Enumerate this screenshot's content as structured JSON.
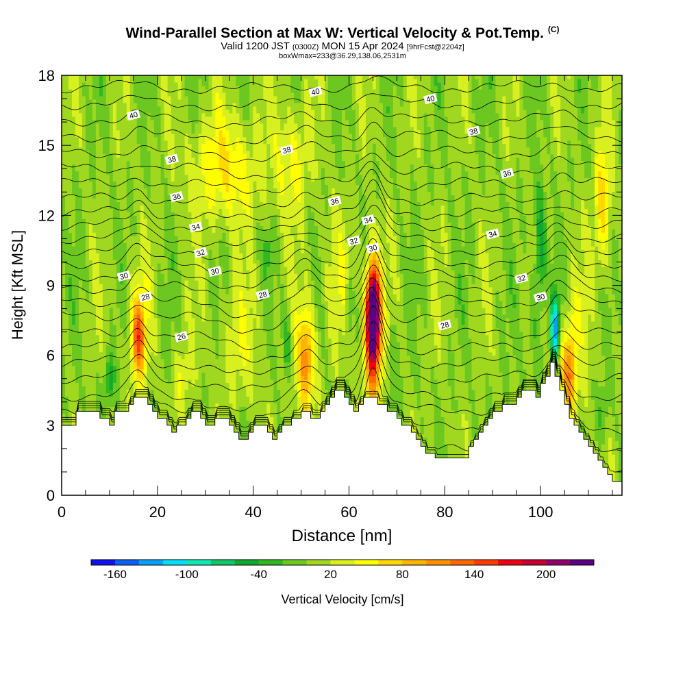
{
  "header": {
    "title": "Wind-Parallel Section at Max W: Vertical Velocity & Pot.Temp.",
    "copyright": "(C)",
    "valid_prefix": "Valid 1200 JST",
    "valid_z": "(0300Z)",
    "valid_date": "MON 15 Apr 2024",
    "forecast": "[9hrFcst@2204z]",
    "box_info": "boxWmax=233@36.29,138.06,2531m"
  },
  "chart_data": {
    "type": "heatmap",
    "xlabel": "Distance [nm]",
    "ylabel": "Height [Kft MSL]",
    "xlim": [
      0,
      117
    ],
    "ylim": [
      0,
      18
    ],
    "x_ticks": [
      "0",
      "20",
      "40",
      "60",
      "80",
      "100"
    ],
    "y_ticks": [
      "0",
      "3",
      "6",
      "9",
      "12",
      "15",
      "18"
    ],
    "colorbar": {
      "label": "Vertical Velocity [cm/s]",
      "tick_labels": [
        "-160",
        "-100",
        "-40",
        "20",
        "80",
        "140",
        "200"
      ],
      "levels": [
        -180,
        -160,
        -140,
        -120,
        -100,
        -80,
        -60,
        -40,
        -20,
        0,
        20,
        40,
        60,
        80,
        100,
        120,
        140,
        160,
        180,
        200,
        220,
        240
      ],
      "colors": [
        "#1010f0",
        "#0a5ff5",
        "#0aa0f8",
        "#00e0f8",
        "#10e8b0",
        "#10c868",
        "#10a830",
        "#30b820",
        "#6cc820",
        "#a0d820",
        "#d8f020",
        "#ffff00",
        "#ffd800",
        "#ffb400",
        "#ff9000",
        "#ff6800",
        "#ff3c00",
        "#f00010",
        "#c80030",
        "#90006a",
        "#5a0080"
      ]
    },
    "terrain_top_kft": [
      [
        0,
        3.0
      ],
      [
        3,
        3.0
      ],
      [
        3,
        3.6
      ],
      [
        8,
        3.6
      ],
      [
        8,
        3.3
      ],
      [
        10,
        3.3
      ],
      [
        10,
        3.0
      ],
      [
        11,
        3.0
      ],
      [
        11,
        3.6
      ],
      [
        14,
        3.6
      ],
      [
        14,
        3.9
      ],
      [
        15,
        3.9
      ],
      [
        15,
        4.2
      ],
      [
        18,
        4.2
      ],
      [
        18,
        3.9
      ],
      [
        19,
        3.9
      ],
      [
        19,
        3.6
      ],
      [
        20,
        3.6
      ],
      [
        20,
        3.3
      ],
      [
        22,
        3.3
      ],
      [
        22,
        3.0
      ],
      [
        23,
        3.0
      ],
      [
        23,
        2.7
      ],
      [
        24,
        2.7
      ],
      [
        24,
        3.0
      ],
      [
        26,
        3.0
      ],
      [
        26,
        3.3
      ],
      [
        27,
        3.3
      ],
      [
        27,
        3.6
      ],
      [
        29,
        3.6
      ],
      [
        29,
        3.3
      ],
      [
        30,
        3.3
      ],
      [
        30,
        3.0
      ],
      [
        32,
        3.0
      ],
      [
        32,
        3.3
      ],
      [
        35,
        3.3
      ],
      [
        35,
        3.0
      ],
      [
        36,
        3.0
      ],
      [
        36,
        2.7
      ],
      [
        37,
        2.7
      ],
      [
        37,
        2.4
      ],
      [
        39,
        2.4
      ],
      [
        39,
        2.7
      ],
      [
        40,
        2.7
      ],
      [
        40,
        3.0
      ],
      [
        43,
        3.0
      ],
      [
        43,
        2.7
      ],
      [
        44,
        2.7
      ],
      [
        44,
        2.4
      ],
      [
        45,
        2.4
      ],
      [
        45,
        2.7
      ],
      [
        46,
        2.7
      ],
      [
        46,
        3.0
      ],
      [
        48,
        3.0
      ],
      [
        48,
        3.3
      ],
      [
        50,
        3.3
      ],
      [
        50,
        3.6
      ],
      [
        52,
        3.6
      ],
      [
        52,
        3.3
      ],
      [
        54,
        3.3
      ],
      [
        54,
        3.6
      ],
      [
        55,
        3.6
      ],
      [
        55,
        3.9
      ],
      [
        56,
        3.9
      ],
      [
        56,
        4.2
      ],
      [
        57,
        4.2
      ],
      [
        57,
        4.5
      ],
      [
        59,
        4.5
      ],
      [
        59,
        4.2
      ],
      [
        60,
        4.2
      ],
      [
        60,
        3.9
      ],
      [
        61,
        3.9
      ],
      [
        61,
        3.6
      ],
      [
        62,
        3.6
      ],
      [
        62,
        3.9
      ],
      [
        63,
        3.9
      ],
      [
        63,
        4.2
      ],
      [
        66,
        4.2
      ],
      [
        66,
        3.9
      ],
      [
        68,
        3.9
      ],
      [
        68,
        3.6
      ],
      [
        70,
        3.6
      ],
      [
        70,
        3.3
      ],
      [
        71,
        3.3
      ],
      [
        71,
        3.0
      ],
      [
        73,
        3.0
      ],
      [
        73,
        2.7
      ],
      [
        74,
        2.7
      ],
      [
        74,
        2.4
      ],
      [
        75,
        2.4
      ],
      [
        75,
        2.1
      ],
      [
        76,
        2.1
      ],
      [
        76,
        1.8
      ],
      [
        78,
        1.8
      ],
      [
        78,
        1.6
      ],
      [
        85,
        1.6
      ],
      [
        85,
        2.1
      ],
      [
        86,
        2.1
      ],
      [
        86,
        2.4
      ],
      [
        87,
        2.4
      ],
      [
        87,
        2.7
      ],
      [
        88,
        2.7
      ],
      [
        88,
        3.0
      ],
      [
        89,
        3.0
      ],
      [
        89,
        3.3
      ],
      [
        90,
        3.3
      ],
      [
        90,
        3.6
      ],
      [
        92,
        3.6
      ],
      [
        92,
        3.9
      ],
      [
        95,
        3.9
      ],
      [
        95,
        4.2
      ],
      [
        96,
        4.2
      ],
      [
        96,
        4.5
      ],
      [
        99,
        4.5
      ],
      [
        99,
        4.2
      ],
      [
        100,
        4.2
      ],
      [
        100,
        4.8
      ],
      [
        101,
        4.8
      ],
      [
        101,
        5.1
      ],
      [
        102,
        5.1
      ],
      [
        102,
        5.7
      ],
      [
        103,
        5.7
      ],
      [
        103,
        5.1
      ],
      [
        104,
        5.1
      ],
      [
        104,
        4.5
      ],
      [
        105,
        4.5
      ],
      [
        105,
        3.9
      ],
      [
        106,
        3.9
      ],
      [
        106,
        3.3
      ],
      [
        107,
        3.3
      ],
      [
        107,
        3.0
      ],
      [
        108,
        3.0
      ],
      [
        108,
        2.7
      ],
      [
        109,
        2.7
      ],
      [
        109,
        2.4
      ],
      [
        110,
        2.4
      ],
      [
        110,
        2.1
      ],
      [
        111,
        2.1
      ],
      [
        111,
        1.8
      ],
      [
        112,
        1.8
      ],
      [
        112,
        1.5
      ],
      [
        113,
        1.5
      ],
      [
        113,
        1.2
      ],
      [
        114,
        1.2
      ],
      [
        114,
        0.9
      ],
      [
        115,
        0.9
      ],
      [
        115,
        0.6
      ],
      [
        117,
        0.6
      ]
    ],
    "background_w_cm_s": 5,
    "w_features": [
      {
        "x": 65,
        "y": 7.8,
        "sx": 1.3,
        "sy": 1.9,
        "w": 240
      },
      {
        "x": 65,
        "y": 6.6,
        "sx": 1.9,
        "sy": 3.4,
        "w": 120
      },
      {
        "x": 16,
        "y": 6.8,
        "sx": 1.3,
        "sy": 1.5,
        "w": 100
      },
      {
        "x": 16,
        "y": 6.8,
        "sx": 2.3,
        "sy": 2.9,
        "w": 40
      },
      {
        "x": 51,
        "y": 5.8,
        "sx": 1.6,
        "sy": 2.0,
        "w": 80
      },
      {
        "x": 51,
        "y": 5.8,
        "sx": 2.4,
        "sy": 3.0,
        "w": 30
      },
      {
        "x": 106,
        "y": 5.2,
        "sx": 2.0,
        "sy": 1.7,
        "w": 85
      },
      {
        "x": 107,
        "y": 6.2,
        "sx": 2.8,
        "sy": 3.0,
        "w": 35
      },
      {
        "x": 113,
        "y": 12.5,
        "sx": 1.8,
        "sy": 3.0,
        "w": 65
      },
      {
        "x": 34,
        "y": 14.0,
        "sx": 7.0,
        "sy": 2.4,
        "w": 55
      },
      {
        "x": 48,
        "y": 14.4,
        "sx": 3.5,
        "sy": 2.5,
        "w": 45
      },
      {
        "x": 37,
        "y": 6.5,
        "sx": 5.0,
        "sy": 2.5,
        "w": 25
      },
      {
        "x": 25,
        "y": 5.0,
        "sx": 2.0,
        "sy": 1.5,
        "w": 35
      },
      {
        "x": 58,
        "y": 9.5,
        "sx": 4.0,
        "sy": 3.0,
        "w": 20
      },
      {
        "x": 10,
        "y": 5.0,
        "sx": 0.9,
        "sy": 1.0,
        "w": -65
      },
      {
        "x": 47,
        "y": 6.5,
        "sx": 0.9,
        "sy": 1.4,
        "w": -50
      },
      {
        "x": 60,
        "y": 8.0,
        "sx": 0.7,
        "sy": 1.5,
        "w": -45
      },
      {
        "x": 103,
        "y": 7.2,
        "sx": 0.9,
        "sy": 1.4,
        "w": -130
      },
      {
        "x": 100,
        "y": 11.0,
        "sx": 1.1,
        "sy": 2.4,
        "w": -60
      },
      {
        "x": 99,
        "y": 7.5,
        "sx": 1.5,
        "sy": 3.0,
        "w": -30
      },
      {
        "x": 69,
        "y": 5.5,
        "sx": 1.2,
        "sy": 2.2,
        "w": -25
      },
      {
        "x": 108,
        "y": 5.5,
        "sx": 1.0,
        "sy": 1.5,
        "w": -40
      },
      {
        "x": 113,
        "y": 3.5,
        "sx": 1.2,
        "sy": 1.2,
        "w": -35
      },
      {
        "x": 43,
        "y": 10.5,
        "sx": 1.0,
        "sy": 0.8,
        "w": -30
      }
    ],
    "theta_labels": [
      {
        "text": "40",
        "x": 53,
        "y": 17.3
      },
      {
        "text": "40",
        "x": 77,
        "y": 17.0
      },
      {
        "text": "40",
        "x": 15,
        "y": 16.3
      },
      {
        "text": "38",
        "x": 86,
        "y": 15.6
      },
      {
        "text": "38",
        "x": 47,
        "y": 14.8
      },
      {
        "text": "38",
        "x": 23,
        "y": 14.4
      },
      {
        "text": "36",
        "x": 93,
        "y": 13.8
      },
      {
        "text": "36",
        "x": 24,
        "y": 12.8
      },
      {
        "text": "36",
        "x": 57,
        "y": 12.6
      },
      {
        "text": "34",
        "x": 64,
        "y": 11.8
      },
      {
        "text": "34",
        "x": 28,
        "y": 11.5
      },
      {
        "text": "34",
        "x": 90,
        "y": 11.2
      },
      {
        "text": "32",
        "x": 61,
        "y": 10.9
      },
      {
        "text": "32",
        "x": 29,
        "y": 10.4
      },
      {
        "text": "32",
        "x": 96,
        "y": 9.3
      },
      {
        "text": "30",
        "x": 65,
        "y": 10.6
      },
      {
        "text": "30",
        "x": 32,
        "y": 9.6
      },
      {
        "text": "30",
        "x": 13,
        "y": 9.4
      },
      {
        "text": "30",
        "x": 100,
        "y": 8.5
      },
      {
        "text": "28",
        "x": 17.5,
        "y": 8.5
      },
      {
        "text": "28",
        "x": 42,
        "y": 8.6
      },
      {
        "text": "28",
        "x": 80,
        "y": 7.3
      },
      {
        "text": "26",
        "x": 25,
        "y": 6.8
      }
    ],
    "theta_levels": [
      0.95,
      1.9,
      2.9,
      3.7,
      4.3,
      5.05,
      5.7,
      6.3,
      6.9,
      7.65,
      8.3,
      8.9,
      9.45,
      10.0,
      10.55,
      11.05,
      11.6,
      12.1,
      12.7,
      13.35,
      14.0,
      14.7,
      15.4,
      16.1,
      16.8,
      17.5
    ]
  }
}
